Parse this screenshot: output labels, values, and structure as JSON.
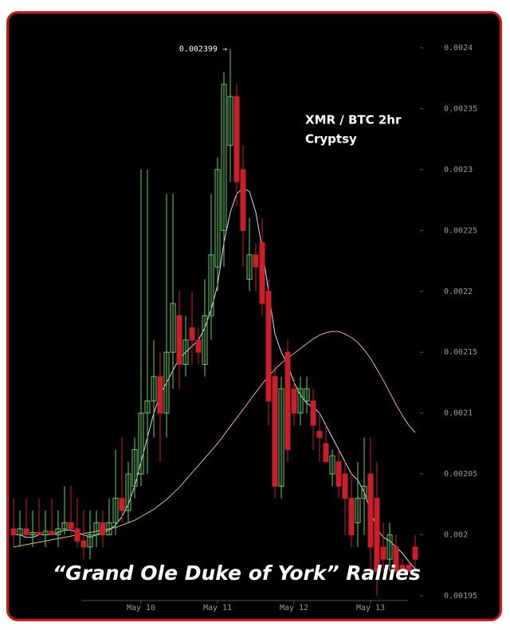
{
  "chart_data": {
    "type": "candlestick",
    "title": "XMR / BTC 2hr",
    "subtitle": "Cryptsy",
    "caption": "“Grand Ole Duke of York” Rallies",
    "annotation": {
      "text": "0.002399 →",
      "index": 34,
      "value": 0.002399
    },
    "categories": [
      null,
      null,
      null,
      null,
      null,
      null,
      null,
      null,
      null,
      null,
      null,
      null,
      null,
      null,
      null,
      null,
      null,
      null,
      null,
      null,
      "May 10",
      null,
      null,
      null,
      null,
      null,
      null,
      null,
      null,
      null,
      null,
      null,
      "May 11",
      null,
      null,
      null,
      null,
      null,
      null,
      null,
      null,
      null,
      null,
      null,
      "May 12",
      null,
      null,
      null,
      null,
      null,
      null,
      null,
      null,
      null,
      null,
      null,
      "May 13",
      null,
      null,
      null,
      null,
      null,
      null,
      null
    ],
    "open": [
      0.002005,
      0.002,
      0.002005,
      0.002,
      0.002002,
      0.002,
      0.002003,
      0.002,
      0.002005,
      0.00201,
      0.002005,
      0.001995,
      0.00199,
      0.002,
      0.00201,
      0.002,
      0.00201,
      0.00203,
      0.00202,
      0.00204,
      0.00205,
      0.0021,
      0.00211,
      0.00213,
      0.0021,
      0.00215,
      0.00218,
      0.00214,
      0.00217,
      0.00216,
      0.00214,
      0.00218,
      0.00222,
      0.00225,
      0.00232,
      0.00236,
      0.0023,
      0.00221,
      0.00223,
      0.00224,
      0.0022,
      0.00213,
      0.00204,
      0.00215,
      0.00212,
      0.0021,
      0.00211,
      0.00211,
      0.002085,
      0.002075,
      0.00205,
      0.00206,
      0.00205,
      0.00203,
      0.00201,
      0.00203,
      0.00205,
      0.00203,
      0.00199,
      0.00198,
      0.00199,
      0.001975,
      0.001975,
      0.00199
    ],
    "high": [
      0.00203,
      0.00202,
      0.00203,
      0.00202,
      0.00203,
      0.00202,
      0.00203,
      0.00202,
      0.00204,
      0.00204,
      0.00203,
      0.00202,
      0.00202,
      0.00202,
      0.00202,
      0.00203,
      0.00207,
      0.00208,
      0.00206,
      0.00208,
      0.0023,
      0.0023,
      0.00216,
      0.00215,
      0.00228,
      0.00228,
      0.0022,
      0.00218,
      0.0022,
      0.00217,
      0.00221,
      0.00228,
      0.00231,
      0.00238,
      0.002399,
      0.00237,
      0.00232,
      0.00226,
      0.00224,
      0.00226,
      0.00221,
      0.00214,
      0.00213,
      0.00216,
      0.00213,
      0.00213,
      0.00213,
      0.00212,
      0.0021,
      0.00209,
      0.00207,
      0.00207,
      0.00206,
      0.00205,
      0.00206,
      0.00208,
      0.00208,
      0.00206,
      0.00201,
      0.00201,
      0.002,
      0.00198,
      0.00198,
      0.002
    ],
    "low": [
      0.00199,
      0.00199,
      0.002,
      0.00199,
      0.002,
      0.00199,
      0.002,
      0.00199,
      0.002,
      0.002,
      0.00199,
      0.00198,
      0.00198,
      0.00199,
      0.00199,
      0.002,
      0.002,
      0.00201,
      0.00201,
      0.00203,
      0.00204,
      0.00205,
      0.00208,
      0.00206,
      0.00208,
      0.00212,
      0.00212,
      0.00213,
      0.00214,
      0.00214,
      0.00213,
      0.00216,
      0.0022,
      0.00222,
      0.00229,
      0.00227,
      0.00222,
      0.0022,
      0.0022,
      0.00218,
      0.00209,
      0.00203,
      0.00203,
      0.00206,
      0.00209,
      0.00209,
      0.0021,
      0.00207,
      0.00206,
      0.00206,
      0.00204,
      0.00203,
      0.002,
      0.00199,
      0.00199,
      0.002,
      0.00197,
      0.00195,
      0.00197,
      0.00197,
      0.00197,
      0.00197,
      0.00197,
      0.00197
    ],
    "close": [
      0.002,
      0.002005,
      0.002,
      0.002002,
      0.002,
      0.002003,
      0.002,
      0.002005,
      0.00201,
      0.002005,
      0.001995,
      0.00199,
      0.002,
      0.00201,
      0.002,
      0.00201,
      0.00203,
      0.00202,
      0.00205,
      0.00207,
      0.0021,
      0.00211,
      0.00213,
      0.0021,
      0.00215,
      0.00219,
      0.00214,
      0.00216,
      0.00216,
      0.00215,
      0.00218,
      0.00223,
      0.0023,
      0.00237,
      0.00236,
      0.00229,
      0.00225,
      0.00223,
      0.00222,
      0.00219,
      0.00211,
      0.00204,
      0.00212,
      0.00207,
      0.0021,
      0.00212,
      0.00212,
      0.00209,
      0.00208,
      0.00206,
      0.002065,
      0.00204,
      0.00203,
      0.002,
      0.00203,
      0.00204,
      0.00199,
      0.00197,
      0.00198,
      0.002,
      0.00197,
      0.00197,
      0.00197,
      0.00198
    ],
    "up_color": "#5fd35f",
    "down_color": "#c8202a",
    "series": [
      {
        "color": "#d8d8ff",
        "values": [
          0.002,
          0.002,
          0.001998,
          0.001998,
          0.002,
          0.002,
          0.002,
          0.002002,
          0.002004,
          0.002004,
          0.002002,
          0.002,
          0.001998,
          0.002,
          0.002002,
          0.002004,
          0.002008,
          0.002015,
          0.002025,
          0.00204,
          0.00206,
          0.00208,
          0.0021,
          0.002115,
          0.002125,
          0.002135,
          0.002145,
          0.00215,
          0.002155,
          0.00216,
          0.00217,
          0.002185,
          0.002205,
          0.00224,
          0.002265,
          0.00228,
          0.002285,
          0.002282,
          0.002265,
          0.002235,
          0.0022,
          0.002165,
          0.00215,
          0.00214,
          0.002125,
          0.002115,
          0.002108,
          0.002105,
          0.0021,
          0.00209,
          0.00208,
          0.00207,
          0.00206,
          0.00205,
          0.002045,
          0.002035,
          0.00202,
          0.002005,
          0.001998,
          0.001995,
          0.00199,
          0.001985,
          0.001978,
          0.001972
        ]
      },
      {
        "color": "#f0b070",
        "values": [
          0.00199,
          0.001991,
          0.001992,
          0.001993,
          0.001994,
          0.001995,
          0.001996,
          0.001997,
          0.001998,
          0.001999,
          0.002,
          0.002001,
          0.002002,
          0.002003,
          0.002004,
          0.002005,
          0.002006,
          0.002008,
          0.00201,
          0.002012,
          0.002015,
          0.002018,
          0.002021,
          0.002025,
          0.002029,
          0.002034,
          0.002039,
          0.002045,
          0.002051,
          0.002057,
          0.002063,
          0.002069,
          0.002075,
          0.002082,
          0.002089,
          0.002096,
          0.002103,
          0.00211,
          0.002117,
          0.002124,
          0.00213,
          0.002136,
          0.002141,
          0.002145,
          0.002149,
          0.002153,
          0.002157,
          0.002161,
          0.002164,
          0.002166,
          0.002167,
          0.002167,
          0.002165,
          0.002162,
          0.002158,
          0.002152,
          0.002145,
          0.002136,
          0.002127,
          0.002117,
          0.002107,
          0.002098,
          0.00209,
          0.002084
        ]
      }
    ],
    "ylim": [
      0.00195,
      0.0024
    ],
    "yticks": [
      0.00195,
      0.002,
      0.00205,
      0.0021,
      0.00215,
      0.0022,
      0.00225,
      0.0023,
      0.00235,
      0.0024
    ]
  }
}
